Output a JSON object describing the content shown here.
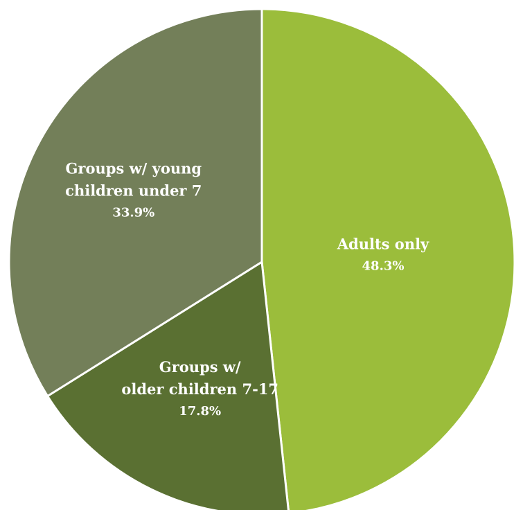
{
  "chart_data": {
    "type": "pie",
    "title": "",
    "start_angle_deg": 0,
    "direction": "clockwise",
    "slices": [
      {
        "label_lines": [
          "Adults only"
        ],
        "value": 48.3,
        "value_label": "48.3%",
        "color": "#9bbd3b"
      },
      {
        "label_lines": [
          "Groups w/",
          "older children 7-17"
        ],
        "value": 17.8,
        "value_label": "17.8%",
        "color": "#5a7032"
      },
      {
        "label_lines": [
          "Groups w/ young",
          "children under 7"
        ],
        "value": 33.9,
        "value_label": "33.9%",
        "color": "#737f59"
      }
    ],
    "separator_color": "#ffffff"
  }
}
